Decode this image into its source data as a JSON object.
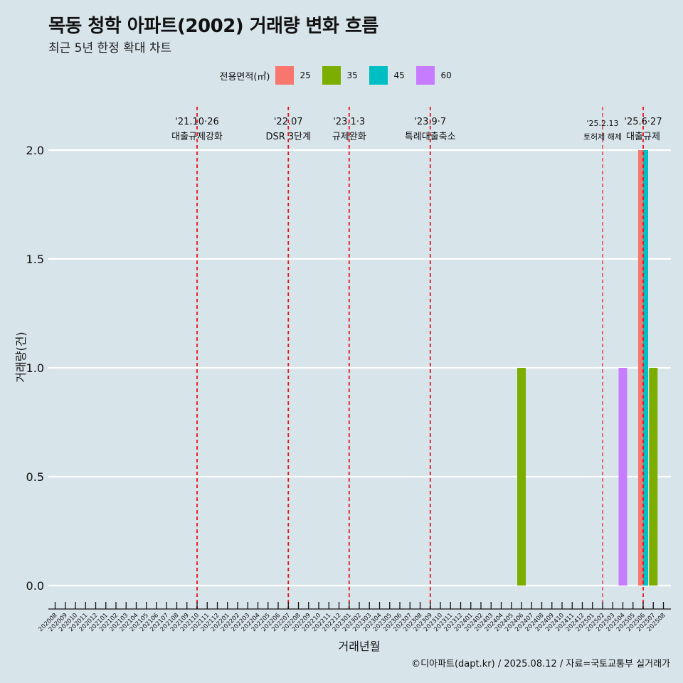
{
  "header": {
    "title": "목동 청학 아파트(2002) 거래량 변화 흐름",
    "subtitle": "최근 5년 한정 확대 차트"
  },
  "legend": {
    "title": "전용면적(㎡)",
    "items": [
      {
        "label": "25",
        "color": "#F8766D"
      },
      {
        "label": "35",
        "color": "#7CAE00"
      },
      {
        "label": "45",
        "color": "#00BFC4"
      },
      {
        "label": "60",
        "color": "#C77CFF"
      }
    ]
  },
  "caption": "©디아파트(dapt.kr) / 2025.08.12 / 자료=국토교통부 실거래가",
  "chart_data": {
    "type": "bar",
    "title": "목동 청학 아파트(2002) 거래량 변화 흐름",
    "xlabel": "거래년월",
    "ylabel": "거래량(건)",
    "ylim": [
      -0.08,
      2.1
    ],
    "yticks": [
      "0.0",
      "0.5",
      "1.0",
      "1.5",
      "2.0"
    ],
    "ytick_values": [
      0,
      0.5,
      1.0,
      1.5,
      2.0
    ],
    "categories": [
      "202008",
      "202009",
      "202010",
      "202011",
      "202012",
      "202101",
      "202102",
      "202103",
      "202104",
      "202105",
      "202106",
      "202107",
      "202108",
      "202109",
      "202110",
      "202111",
      "202112",
      "202201",
      "202202",
      "202203",
      "202204",
      "202205",
      "202206",
      "202207",
      "202208",
      "202209",
      "202210",
      "202211",
      "202212",
      "202301",
      "202302",
      "202303",
      "202304",
      "202305",
      "202306",
      "202307",
      "202308",
      "202309",
      "202310",
      "202311",
      "202312",
      "202401",
      "202402",
      "202403",
      "202404",
      "202405",
      "202406",
      "202407",
      "202408",
      "202409",
      "202410",
      "202411",
      "202412",
      "202501",
      "202502",
      "202503",
      "202504",
      "202505",
      "202506",
      "202507",
      "202508"
    ],
    "series": [
      {
        "name": "25",
        "color": "#F8766D",
        "points": [
          {
            "x": "202506",
            "y": 2
          }
        ]
      },
      {
        "name": "35",
        "color": "#7CAE00",
        "points": [
          {
            "x": "202406",
            "y": 1
          },
          {
            "x": "202507",
            "y": 1
          }
        ]
      },
      {
        "name": "45",
        "color": "#00BFC4",
        "points": [
          {
            "x": "202506",
            "y": 2
          }
        ]
      },
      {
        "name": "60",
        "color": "#C77CFF",
        "points": [
          {
            "x": "202504",
            "y": 1
          }
        ]
      }
    ],
    "annotations": [
      {
        "x": "202110",
        "line1": "'21.10·26",
        "line2": "대출규제강화"
      },
      {
        "x": "202207",
        "line1": "'22.07",
        "line2": "DSR 3단계"
      },
      {
        "x": "202301",
        "line1": "'23.1·3",
        "line2": "규제완화"
      },
      {
        "x": "202309",
        "line1": "'23.9·7",
        "line2": "특례대출축소"
      },
      {
        "x": "202502",
        "line1": "'25.2.13",
        "line2": "토허제 해제",
        "small": true
      },
      {
        "x": "202506",
        "line1": "'25.6·27",
        "line2": "대출규제"
      }
    ]
  }
}
